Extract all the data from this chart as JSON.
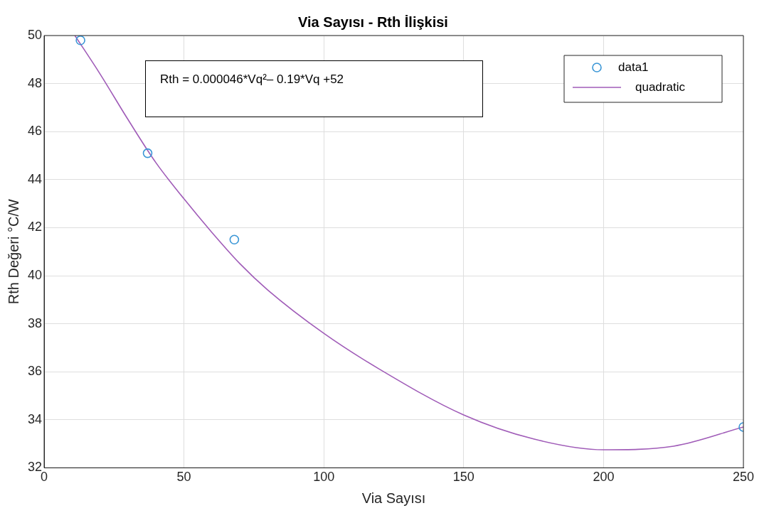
{
  "chart_data": {
    "type": "scatter",
    "title": "Via Sayısı - Rth İlişkisi",
    "xlabel": "Via Sayısı",
    "ylabel": "Rth Değeri °C/W",
    "xlim": [
      0,
      250
    ],
    "xticks": [
      0,
      50,
      100,
      150,
      200,
      250
    ],
    "ylim": [
      32,
      50
    ],
    "yticks": [
      32,
      34,
      36,
      38,
      40,
      42,
      44,
      46,
      48,
      50
    ],
    "grid": true,
    "legend": "top right",
    "annotations": [
      "Rth = 0.000046*Vq²– 0.19*Vq +52"
    ],
    "series": [
      {
        "name": "data1",
        "type": "scatter",
        "color": "#3a96d6",
        "marker": "circle",
        "x": [
          13,
          37,
          68,
          250
        ],
        "values": [
          49.8,
          45.1,
          41.5,
          33.7
        ]
      },
      {
        "name": "quadratic",
        "type": "line",
        "color": "#a05cb8",
        "marker": "none",
        "line_style": "solid",
        "x": [
          11,
          20,
          30,
          40,
          50,
          60,
          70,
          80,
          100,
          120,
          150,
          175,
          200,
          225,
          250
        ],
        "values": [
          50.0,
          48.4,
          46.5,
          44.7,
          43.2,
          41.8,
          40.5,
          39.4,
          37.6,
          36.1,
          34.2,
          33.2,
          32.75,
          32.9,
          33.7
        ]
      }
    ]
  }
}
